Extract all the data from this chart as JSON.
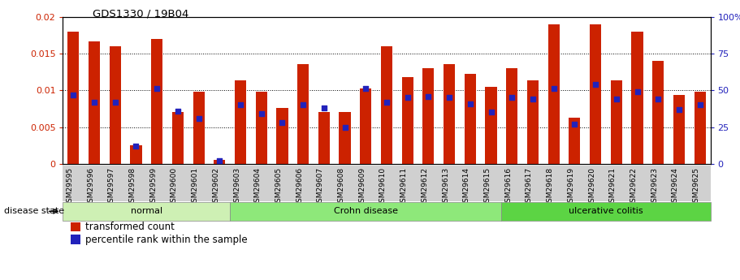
{
  "title": "GDS1330 / 19B04",
  "samples": [
    "GSM29595",
    "GSM29596",
    "GSM29597",
    "GSM29598",
    "GSM29599",
    "GSM29600",
    "GSM29601",
    "GSM29602",
    "GSM29603",
    "GSM29604",
    "GSM29605",
    "GSM29606",
    "GSM29607",
    "GSM29608",
    "GSM29609",
    "GSM29610",
    "GSM29611",
    "GSM29612",
    "GSM29613",
    "GSM29614",
    "GSM29615",
    "GSM29616",
    "GSM29617",
    "GSM29618",
    "GSM29619",
    "GSM29620",
    "GSM29621",
    "GSM29622",
    "GSM29623",
    "GSM29624",
    "GSM29625"
  ],
  "transformed_count": [
    0.018,
    0.0167,
    0.016,
    0.0025,
    0.017,
    0.007,
    0.0098,
    0.0005,
    0.0114,
    0.0098,
    0.0076,
    0.0136,
    0.007,
    0.007,
    0.0103,
    0.016,
    0.0118,
    0.013,
    0.0136,
    0.0122,
    0.0105,
    0.013,
    0.0113,
    0.019,
    0.0063,
    0.019,
    0.0113,
    0.018,
    0.014,
    0.0094,
    0.0098
  ],
  "percentile_rank": [
    47,
    42,
    42,
    12,
    51,
    36,
    31,
    2,
    40,
    34,
    28,
    40,
    38,
    25,
    51,
    42,
    45,
    46,
    45,
    41,
    35,
    45,
    44,
    51,
    27,
    54,
    44,
    49,
    44,
    37,
    40
  ],
  "groups": [
    {
      "label": "normal",
      "start": 0,
      "end": 8,
      "color": "#cef0b4"
    },
    {
      "label": "Crohn disease",
      "start": 8,
      "end": 21,
      "color": "#8ee87a"
    },
    {
      "label": "ulcerative colitis",
      "start": 21,
      "end": 31,
      "color": "#5cd444"
    }
  ],
  "bar_color": "#cc2200",
  "dot_color": "#2222bb",
  "ylim_left": [
    0,
    0.02
  ],
  "ylim_right": [
    0,
    100
  ],
  "yticks_left": [
    0,
    0.005,
    0.01,
    0.015,
    0.02
  ],
  "yticks_right": [
    0,
    25,
    50,
    75,
    100
  ],
  "ytick_labels_left": [
    "0",
    "0.005",
    "0.01",
    "0.015",
    "0.02"
  ],
  "ytick_labels_right": [
    "0",
    "25",
    "50",
    "75",
    "100%"
  ],
  "legend_items": [
    "transformed count",
    "percentile rank within the sample"
  ],
  "disease_state_label": "disease state",
  "bar_width": 0.55
}
